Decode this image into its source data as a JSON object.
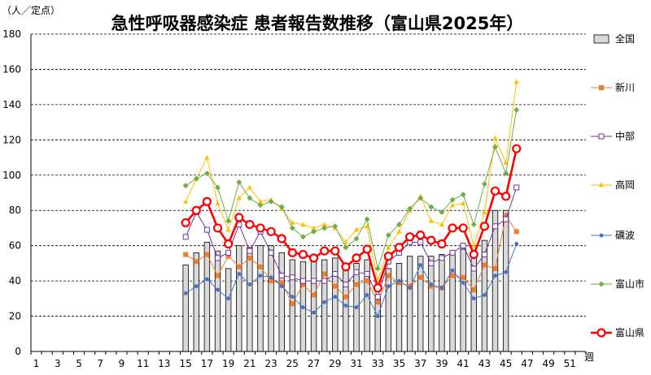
{
  "chart_data": {
    "type": "bar+line",
    "title": "急性呼吸器感染症 患者報告数推移（富山県2025年）",
    "ylabel": "（人／定点）",
    "xlabel": "週",
    "ylim": [
      0,
      180
    ],
    "yticks": [
      0,
      20,
      40,
      60,
      80,
      100,
      120,
      140,
      160,
      180
    ],
    "xlim": [
      1,
      52
    ],
    "xticks": [
      1,
      3,
      5,
      7,
      9,
      11,
      13,
      15,
      17,
      19,
      21,
      23,
      25,
      27,
      29,
      31,
      33,
      35,
      37,
      39,
      41,
      43,
      45,
      47,
      49,
      51
    ],
    "grid": "horizontal-dashed",
    "legend_position": "right",
    "weeks": [
      15,
      16,
      17,
      18,
      19,
      20,
      21,
      22,
      23,
      24,
      25,
      26,
      27,
      28,
      29,
      30,
      31,
      32,
      33,
      34,
      35,
      36,
      37,
      38,
      39,
      40,
      41,
      42,
      43,
      44,
      45,
      46
    ],
    "series": [
      {
        "name": "全国",
        "type": "bar",
        "color": "#d9d9d9",
        "values": [
          49,
          56,
          62,
          57,
          47,
          60,
          59,
          60,
          60,
          56,
          52,
          51,
          51,
          52,
          53,
          48,
          50,
          52,
          32,
          47,
          50,
          54,
          54,
          54,
          55,
          56,
          58,
          57,
          63,
          80,
          80,
          null
        ]
      },
      {
        "name": "新川",
        "type": "line",
        "color": "#ed7d31",
        "marker": "square",
        "values": [
          55,
          51,
          55,
          43,
          54,
          48,
          53,
          48,
          40,
          39,
          27,
          38,
          32,
          44,
          37,
          31,
          38,
          40,
          28,
          43,
          39,
          37,
          42,
          37,
          36,
          43,
          42,
          35,
          49,
          47,
          77,
          68
        ]
      },
      {
        "name": "中部",
        "type": "line",
        "color": "#7030a0",
        "marker": "open-square",
        "values": [
          65,
          79,
          69,
          53,
          56,
          72,
          57,
          68,
          56,
          43,
          42,
          40,
          40,
          40,
          44,
          38,
          45,
          44,
          31,
          51,
          56,
          62,
          62,
          50,
          53,
          56,
          60,
          47,
          55,
          71,
          75,
          93
        ]
      },
      {
        "name": "高岡",
        "type": "line",
        "color": "#ffc000",
        "marker": "triangle",
        "values": [
          85,
          98,
          110,
          84,
          69,
          87,
          93,
          85,
          86,
          81,
          73,
          72,
          70,
          72,
          70,
          62,
          69,
          71,
          40,
          59,
          68,
          80,
          88,
          74,
          72,
          83,
          84,
          60,
          79,
          121,
          107,
          153
        ]
      },
      {
        "name": "礪波",
        "type": "line",
        "color": "#4472c4",
        "marker": "circle",
        "values": [
          33,
          37,
          41,
          35,
          30,
          44,
          38,
          43,
          42,
          37,
          31,
          25,
          22,
          28,
          31,
          26,
          25,
          32,
          20,
          37,
          40,
          36,
          49,
          38,
          36,
          46,
          39,
          30,
          32,
          43,
          45,
          61
        ]
      },
      {
        "name": "富山市",
        "type": "line",
        "color": "#70ad47",
        "marker": "diamond",
        "values": [
          94,
          98,
          101,
          93,
          74,
          96,
          87,
          83,
          85,
          82,
          70,
          65,
          68,
          70,
          71,
          59,
          64,
          75,
          47,
          66,
          72,
          81,
          87,
          82,
          79,
          86,
          89,
          72,
          95,
          116,
          101,
          137
        ]
      },
      {
        "name": "富山県",
        "type": "line",
        "color": "#ff0000",
        "marker": "big-open-circle",
        "values": [
          73,
          80,
          85,
          70,
          61,
          76,
          72,
          70,
          68,
          64,
          56,
          55,
          53,
          57,
          57,
          48,
          53,
          58,
          36,
          54,
          59,
          65,
          66,
          63,
          61,
          70,
          70,
          55,
          71,
          91,
          88,
          115
        ]
      }
    ]
  }
}
